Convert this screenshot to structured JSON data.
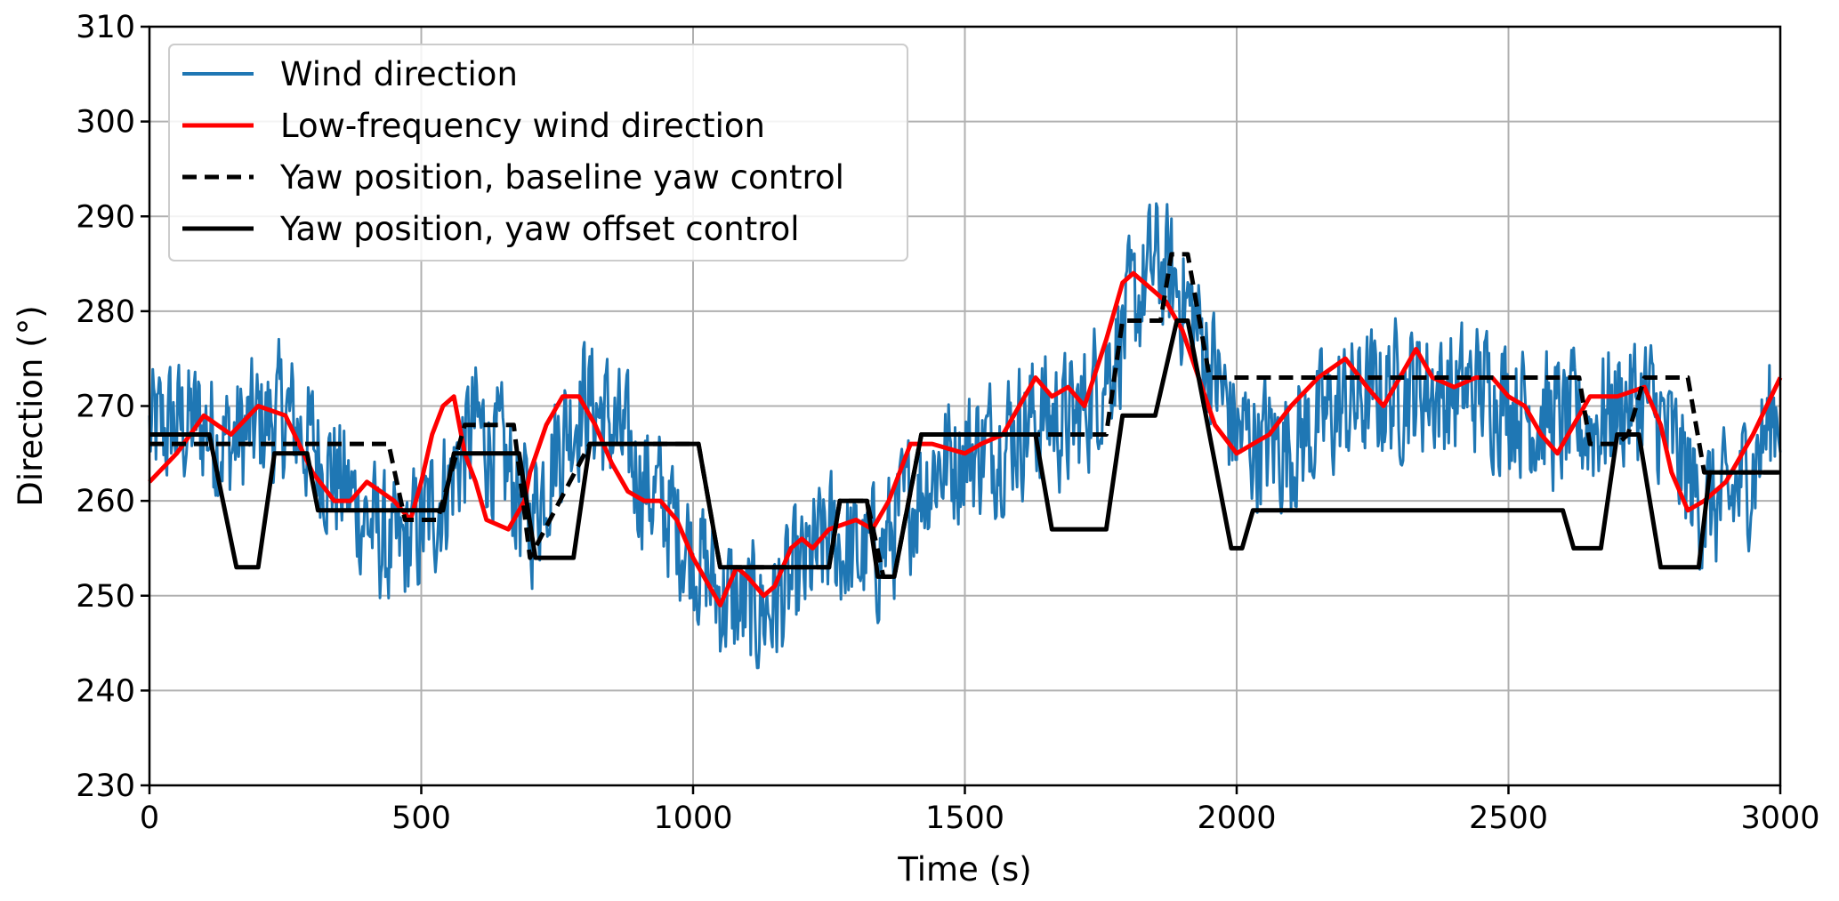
{
  "chart_data": {
    "type": "line",
    "title": "",
    "xlabel": "Time (s)",
    "ylabel": "Direction (°)",
    "xlim": [
      0,
      3000
    ],
    "ylim": [
      230,
      310
    ],
    "xticks": [
      0,
      500,
      1000,
      1500,
      2000,
      2500,
      3000
    ],
    "xtick_labels": [
      "0",
      "500",
      "1000",
      "1500",
      "2000",
      "2500",
      "3000"
    ],
    "yticks": [
      230,
      240,
      250,
      260,
      270,
      280,
      290,
      300,
      310
    ],
    "ytick_labels": [
      "230",
      "240",
      "250",
      "260",
      "270",
      "280",
      "290",
      "300",
      "310"
    ],
    "grid": true,
    "legend_position": "top-left",
    "series": [
      {
        "name": "Wind direction",
        "color": "#1f77b4",
        "style": "solid",
        "noise_amplitude": 9,
        "x": [
          0,
          50,
          100,
          150,
          200,
          250,
          300,
          350,
          400,
          450,
          500,
          550,
          600,
          650,
          700,
          750,
          800,
          850,
          900,
          950,
          1000,
          1050,
          1100,
          1150,
          1200,
          1250,
          1300,
          1350,
          1400,
          1450,
          1500,
          1550,
          1600,
          1650,
          1700,
          1750,
          1800,
          1850,
          1900,
          1950,
          2000,
          2050,
          2100,
          2150,
          2200,
          2250,
          2300,
          2350,
          2400,
          2450,
          2500,
          2550,
          2600,
          2650,
          2700,
          2750,
          2800,
          2850,
          2900,
          2950,
          3000
        ],
        "y": [
          267,
          268,
          268,
          266,
          268,
          269,
          266,
          262,
          258,
          254,
          257,
          262,
          268,
          264,
          258,
          266,
          271,
          268,
          263,
          259,
          255,
          250,
          248,
          249,
          252,
          256,
          254,
          255,
          260,
          264,
          265,
          266,
          268,
          269,
          268,
          273,
          279,
          285,
          282,
          275,
          267,
          266,
          266,
          268,
          270,
          271,
          272,
          272,
          271,
          272,
          271,
          269,
          268,
          268,
          270,
          271,
          266,
          260,
          259,
          264,
          271
        ]
      },
      {
        "name": "Low-frequency wind direction",
        "color": "#ff0000",
        "style": "solid",
        "x": [
          0,
          50,
          100,
          150,
          200,
          250,
          300,
          340,
          370,
          400,
          450,
          480,
          500,
          520,
          540,
          560,
          580,
          600,
          620,
          660,
          690,
          700,
          730,
          760,
          790,
          820,
          850,
          880,
          910,
          940,
          970,
          1000,
          1050,
          1080,
          1100,
          1130,
          1150,
          1180,
          1200,
          1220,
          1250,
          1300,
          1330,
          1360,
          1400,
          1440,
          1500,
          1530,
          1570,
          1600,
          1630,
          1660,
          1690,
          1720,
          1760,
          1790,
          1810,
          1830,
          1850,
          1870,
          1900,
          1930,
          1960,
          2000,
          2030,
          2060,
          2100,
          2150,
          2200,
          2240,
          2270,
          2300,
          2330,
          2360,
          2400,
          2440,
          2470,
          2500,
          2530,
          2560,
          2590,
          2620,
          2650,
          2700,
          2750,
          2780,
          2800,
          2830,
          2860,
          2900,
          2950,
          3000
        ],
        "y": [
          262,
          265,
          269,
          267,
          270,
          269,
          263,
          260,
          260,
          262,
          260,
          258,
          262,
          267,
          270,
          271,
          265,
          262,
          258,
          257,
          260,
          263,
          268,
          271,
          271,
          268,
          264,
          261,
          260,
          260,
          258,
          254,
          249,
          253,
          252,
          250,
          251,
          255,
          256,
          255,
          257,
          258,
          257,
          260,
          266,
          266,
          265,
          266,
          267,
          270,
          273,
          271,
          272,
          270,
          277,
          283,
          284,
          283,
          282,
          281,
          278,
          273,
          268,
          265,
          266,
          267,
          270,
          273,
          275,
          272,
          270,
          273,
          276,
          273,
          272,
          273,
          273,
          271,
          270,
          267,
          265,
          268,
          271,
          271,
          272,
          268,
          263,
          259,
          260,
          262,
          267,
          273
        ]
      },
      {
        "name": "Yaw position, baseline yaw control",
        "color": "#000000",
        "style": "dashed",
        "x": [
          0,
          440,
          470,
          530,
          570,
          580,
          670,
          700,
          810,
          1010,
          1050,
          1250,
          1270,
          1320,
          1350,
          1370,
          1420,
          1760,
          1790,
          1860,
          1880,
          1910,
          1950,
          2630,
          2650,
          2700,
          2720,
          2750,
          2830,
          2860,
          3000
        ],
        "y": [
          266,
          266,
          258,
          258,
          266,
          268,
          268,
          254,
          266,
          266,
          253,
          253,
          260,
          260,
          252,
          252,
          267,
          267,
          279,
          279,
          286,
          286,
          273,
          273,
          266,
          266,
          267,
          273,
          273,
          263,
          263
        ]
      },
      {
        "name": "Yaw position, yaw offset control",
        "color": "#000000",
        "style": "solid",
        "x": [
          0,
          110,
          160,
          200,
          230,
          290,
          310,
          540,
          560,
          680,
          710,
          780,
          810,
          1010,
          1050,
          1250,
          1270,
          1320,
          1340,
          1370,
          1420,
          1630,
          1660,
          1760,
          1790,
          1850,
          1890,
          1910,
          1990,
          2010,
          2030,
          2600,
          2620,
          2670,
          2700,
          2740,
          2780,
          2850,
          2870,
          3000
        ],
        "y": [
          267,
          267,
          253,
          253,
          265,
          265,
          259,
          259,
          265,
          265,
          254,
          254,
          266,
          266,
          253,
          253,
          260,
          260,
          252,
          252,
          267,
          267,
          257,
          257,
          269,
          269,
          279,
          279,
          255,
          255,
          259,
          259,
          255,
          255,
          267,
          267,
          253,
          253,
          263,
          263
        ]
      }
    ]
  }
}
